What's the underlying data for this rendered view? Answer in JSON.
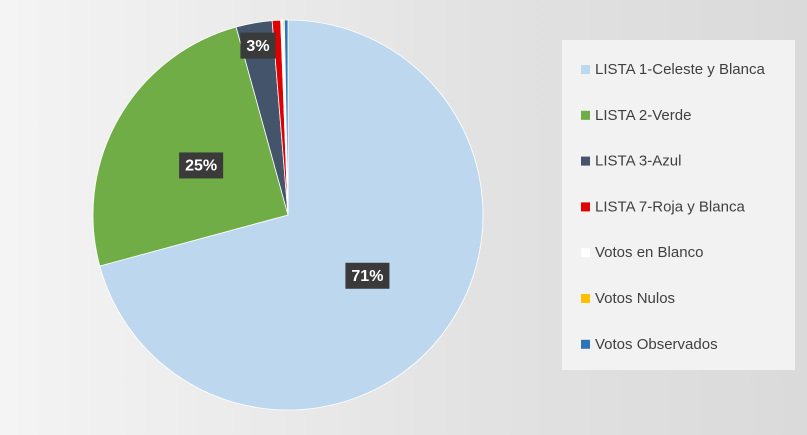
{
  "chart_data": {
    "type": "pie",
    "categories": [
      "LISTA 1-Celeste y Blanca",
      "LISTA 2-Verde",
      "LISTA 3-Azul",
      "LISTA 7-Roja y Blanca",
      "Votos en Blanco",
      "Votos Nulos",
      "Votos Observados"
    ],
    "values": [
      71,
      25,
      3,
      0.7,
      0.2,
      0.1,
      0.3
    ],
    "value_labels": [
      "71%",
      "25%",
      "3%",
      null,
      null,
      null,
      null
    ],
    "colors": [
      "#bdd7ee",
      "#70ad47",
      "#44546a",
      "#e00000",
      "#ffffff",
      "#ffc000",
      "#2e75b6"
    ],
    "legend": "right"
  }
}
